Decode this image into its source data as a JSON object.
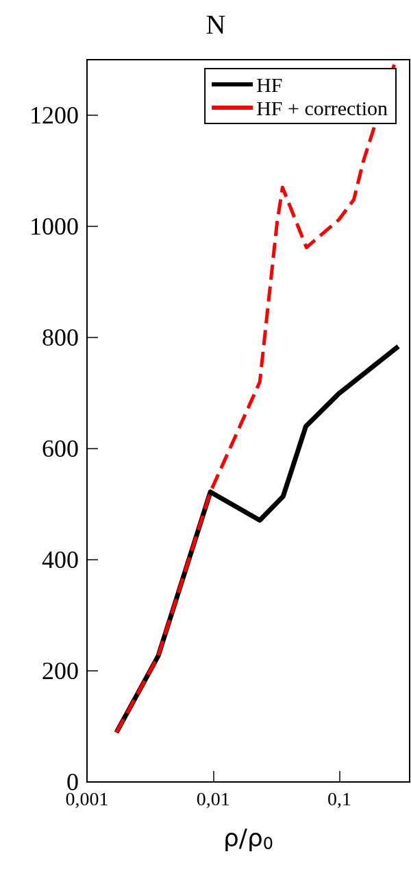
{
  "chart_data": {
    "type": "line",
    "title": "N",
    "xlabel": "ρ/ρ$_{0}$",
    "log": "x",
    "legend": "top right",
    "grid": false,
    "marker": "none",
    "xlim": [
      0.001,
      0.36
    ],
    "xticks": [
      {
        "value": 0.001,
        "label": "0,001"
      },
      {
        "value": 0.01,
        "label": "0,01"
      },
      {
        "value": 0.1,
        "label": "0,1"
      }
    ],
    "ylim": [
      0,
      1300
    ],
    "yticks": [
      0,
      200,
      400,
      600,
      800,
      1000,
      1200
    ],
    "series": [
      {
        "name": "HF",
        "color": "#000000",
        "line_style": "solid",
        "x": [
          0.00171,
          0.00367,
          0.0095,
          0.0234,
          0.0358,
          0.0542,
          0.099,
          0.293
        ],
        "values": [
          89,
          227,
          522,
          471,
          514,
          640,
          699,
          784
        ]
      },
      {
        "name": "HF + correction",
        "color": "#ff0000",
        "line_style": "dashed",
        "x": [
          0.00171,
          0.00367,
          0.0095,
          0.0234,
          0.032,
          0.0354,
          0.0548,
          0.099,
          0.13,
          0.155,
          0.28
        ],
        "values": [
          89,
          227,
          522,
          720,
          1005,
          1070,
          962,
          1012,
          1048,
          1118,
          1300
        ]
      }
    ]
  }
}
